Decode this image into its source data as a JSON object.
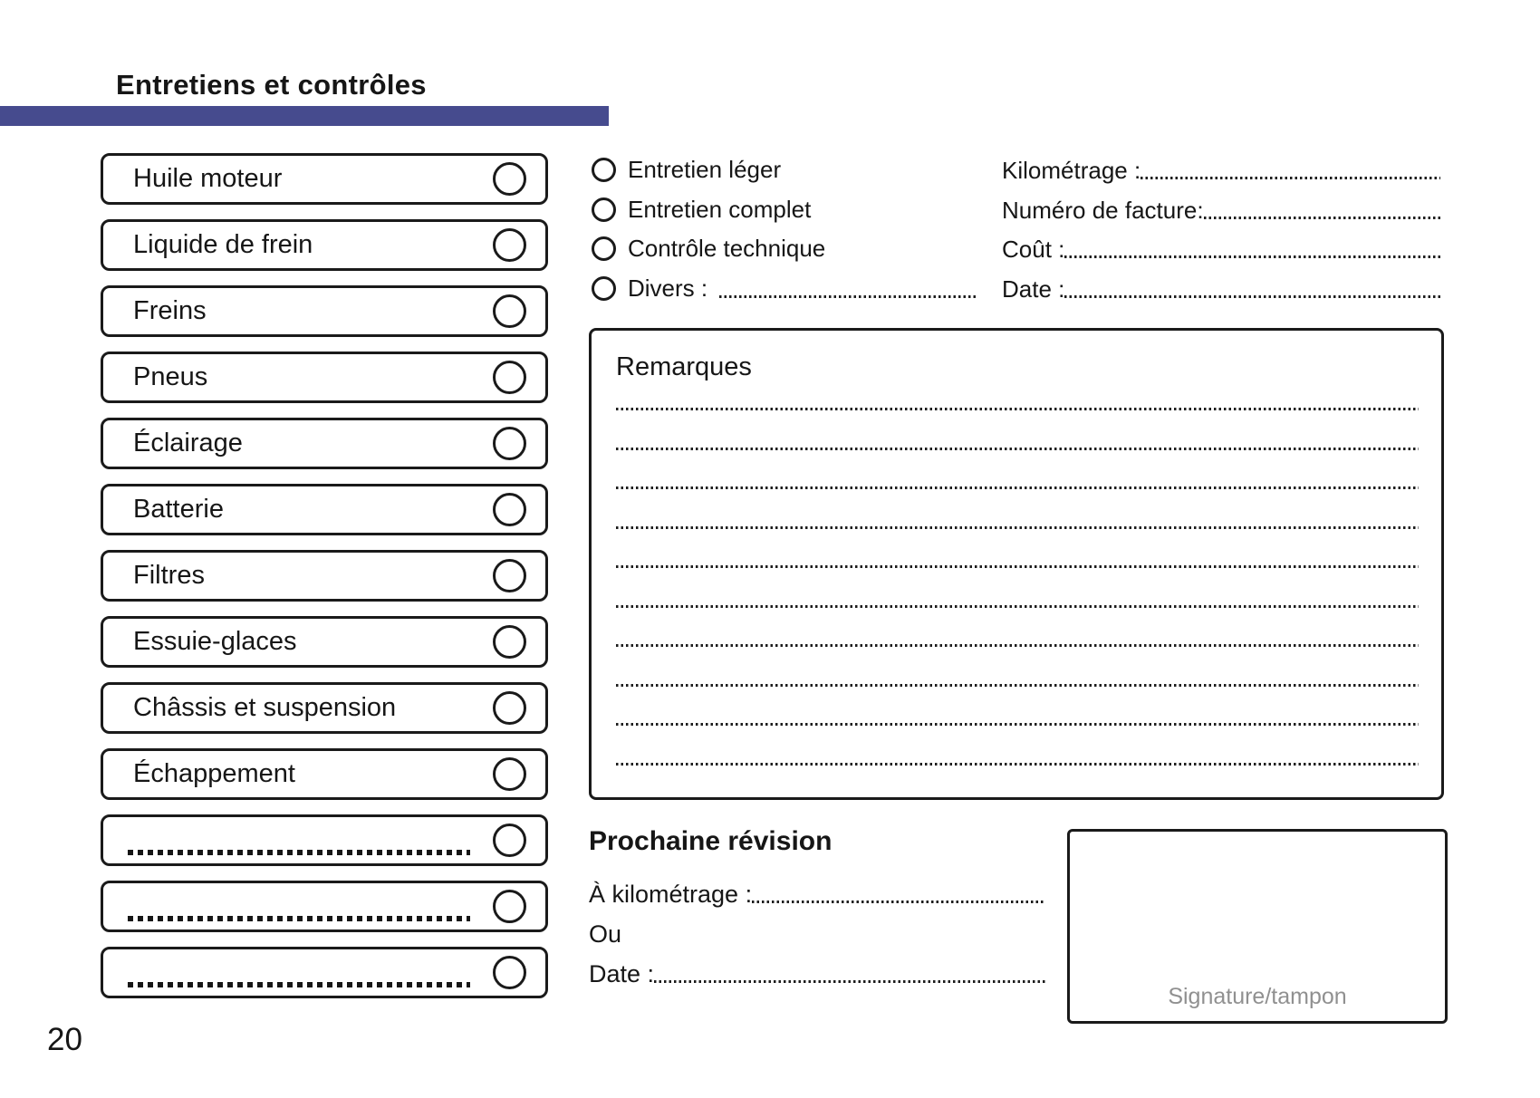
{
  "page": {
    "title": "Entretiens et contrôles",
    "page_number": "20",
    "accent_color": "#464b8e"
  },
  "checklist": {
    "items": [
      {
        "label": "Huile moteur"
      },
      {
        "label": "Liquide de frein"
      },
      {
        "label": "Freins"
      },
      {
        "label": "Pneus"
      },
      {
        "label": "Éclairage"
      },
      {
        "label": "Batterie"
      },
      {
        "label": "Filtres"
      },
      {
        "label": "Essuie-glaces"
      },
      {
        "label": "Châssis et suspension"
      },
      {
        "label": "Échappement"
      },
      {
        "label": ""
      },
      {
        "label": ""
      },
      {
        "label": ""
      }
    ]
  },
  "service_type": {
    "options": [
      "Entretien léger",
      "Entretien complet",
      "Contrôle technique"
    ],
    "divers_label": "Divers :"
  },
  "invoice_fields": {
    "rows": [
      {
        "label": "Kilométrage :"
      },
      {
        "label": "Numéro de facture:"
      },
      {
        "label": "Coût :"
      },
      {
        "label": "Date :"
      }
    ]
  },
  "remarks": {
    "title": "Remarques",
    "line_count": 10
  },
  "next_service": {
    "title": "Prochaine révision",
    "km_label": "À kilométrage :",
    "or_label": "Ou",
    "date_label": "Date :"
  },
  "signature": {
    "label": "Signature/tampon"
  }
}
